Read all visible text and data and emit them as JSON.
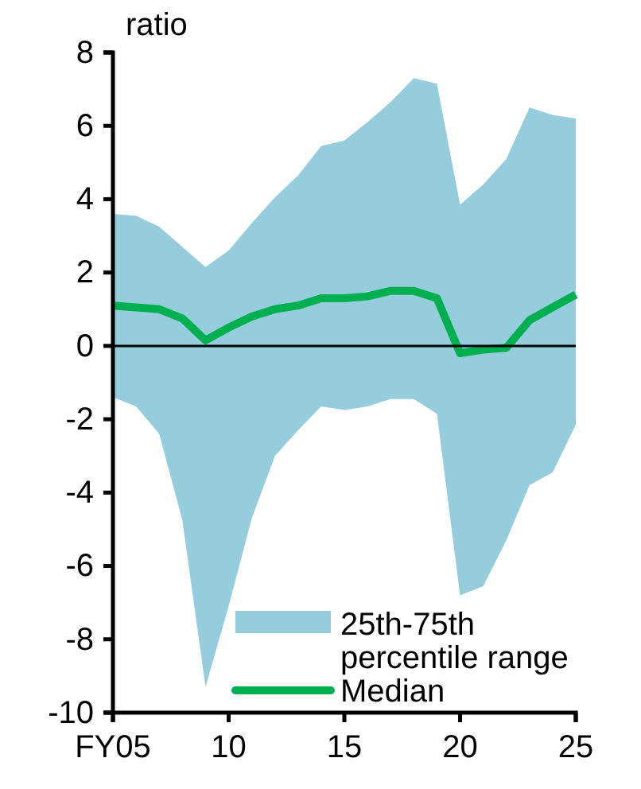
{
  "chart_data": {
    "type": "line",
    "ylabel": "ratio",
    "x": [
      5,
      6,
      7,
      8,
      9,
      10,
      11,
      12,
      13,
      14,
      15,
      16,
      17,
      18,
      19,
      20,
      21,
      22,
      23,
      24,
      25
    ],
    "series": [
      {
        "name": "Median",
        "type": "line",
        "color": "#00b050",
        "values": [
          1.1,
          1.05,
          1.0,
          0.75,
          0.15,
          0.5,
          0.8,
          1.0,
          1.1,
          1.3,
          1.3,
          1.35,
          1.5,
          1.5,
          1.3,
          -0.2,
          -0.1,
          -0.05,
          0.7,
          1.05,
          1.4
        ],
        "lower": [
          -1.4,
          -1.65,
          -2.4,
          -4.75,
          -9.3,
          -7.1,
          -4.7,
          -3.0,
          -2.3,
          -1.65,
          -1.75,
          -1.65,
          -1.45,
          -1.45,
          -1.85,
          -6.8,
          -6.55,
          -5.3,
          -3.8,
          -3.45,
          -2.15
        ],
        "upper": [
          3.6,
          3.55,
          3.25,
          2.7,
          2.15,
          2.6,
          3.35,
          4.05,
          4.65,
          5.45,
          5.6,
          6.1,
          6.65,
          7.3,
          7.15,
          3.85,
          4.4,
          5.1,
          6.5,
          6.3,
          6.2
        ]
      }
    ],
    "annotations": [
      "25th-75th percentile range"
    ],
    "xlim": [
      5,
      25
    ],
    "xticks": [
      {
        "value": 5,
        "label": "FY05"
      },
      10,
      15,
      20,
      25
    ],
    "ylim": [
      -10,
      8
    ],
    "yticks": [
      -10,
      -8,
      -6,
      -4,
      -2,
      0,
      2,
      4,
      6,
      8
    ],
    "ref_lines": [
      {
        "axis": "y",
        "value": 0,
        "color": "#000000"
      }
    ],
    "grid": false,
    "legend": "bottom right",
    "marker": "none",
    "line_style": "solid"
  }
}
